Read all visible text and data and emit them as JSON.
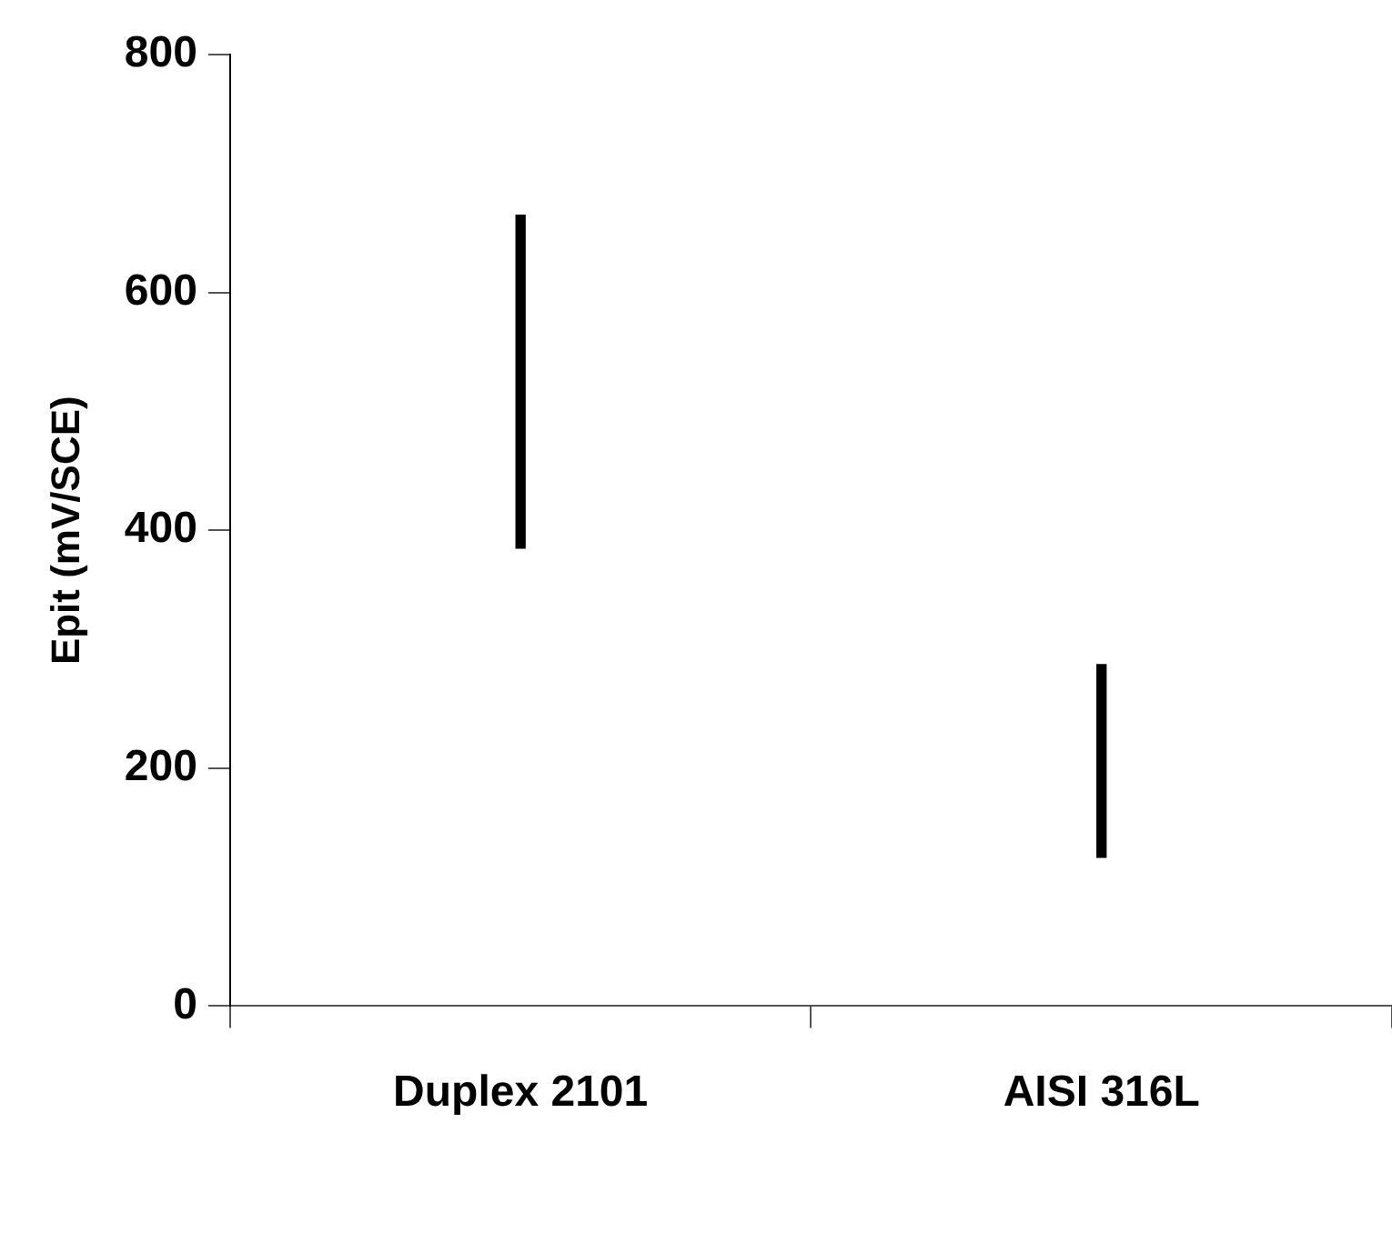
{
  "chart_data": {
    "type": "bar",
    "ylabel": "Epit (mV/SCE)",
    "categories": [
      "Duplex 2101",
      "AISI 316L"
    ],
    "base": [
      385,
      125
    ],
    "values": [
      280,
      162
    ],
    "color": "#000000",
    "ylim": [
      0,
      800
    ],
    "yticks": [
      0,
      200,
      400,
      600,
      800
    ],
    "grid": false,
    "legend": false
  }
}
